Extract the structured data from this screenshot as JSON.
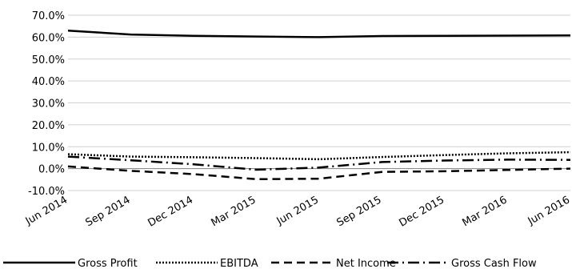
{
  "chart_data": {
    "type": "line",
    "x": [
      "Jun 2014",
      "Sep 2014",
      "Dec 2014",
      "Mar 2015",
      "Jun 2015",
      "Sep 2015",
      "Dec 2015",
      "Mar 2016",
      "Jun 2016"
    ],
    "ylim": [
      -10,
      70
    ],
    "yticks": [
      "70.0%",
      "60.0%",
      "50.0%",
      "40.0%",
      "30.0%",
      "20.0%",
      "10.0%",
      "0.0%",
      "-10.0%"
    ],
    "ytick_values": [
      70,
      60,
      50,
      40,
      30,
      20,
      10,
      0,
      -10
    ],
    "grid": true,
    "legend_position": "bottom",
    "series": [
      {
        "name": "Gross Profit",
        "style": "solid",
        "values": [
          63.0,
          61.2,
          60.6,
          60.3,
          60.0,
          60.5,
          60.6,
          60.7,
          60.8
        ]
      },
      {
        "name": "EBITDA",
        "style": "dotted",
        "values": [
          6.6,
          5.5,
          5.2,
          4.8,
          4.3,
          5.3,
          6.2,
          7.0,
          7.5
        ]
      },
      {
        "name": "Net Income",
        "style": "dashed",
        "values": [
          1.0,
          -1.0,
          -2.5,
          -4.8,
          -4.6,
          -1.5,
          -1.2,
          -0.6,
          0.0
        ]
      },
      {
        "name": "Gross Cash Flow",
        "style": "dashdot",
        "values": [
          5.5,
          3.8,
          2.0,
          -0.5,
          0.5,
          3.0,
          3.7,
          4.1,
          4.0
        ]
      }
    ]
  }
}
